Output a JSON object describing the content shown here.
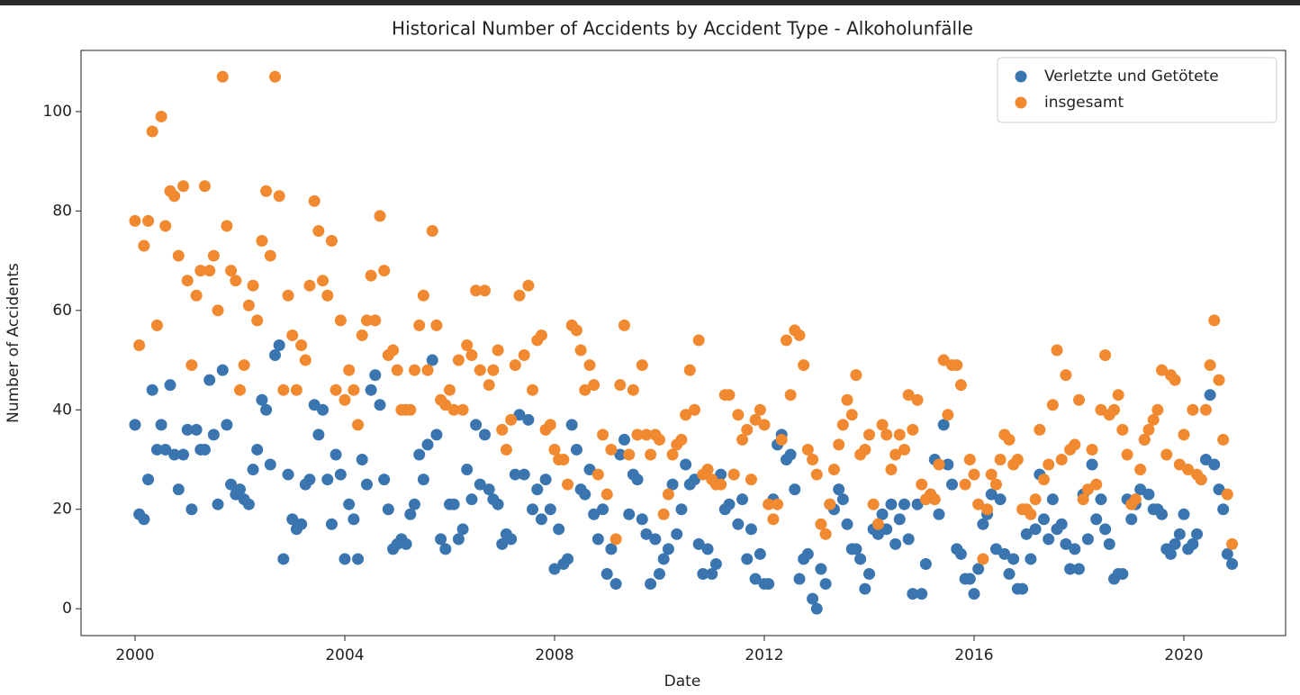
{
  "chart_data": {
    "type": "scatter",
    "title": "Historical Number of Accidents by Accident Type - Alkoholunfälle",
    "xlabel": "Date",
    "ylabel": "Number of Accidents",
    "xlim": [
      1998.97,
      2021.94
    ],
    "xticks": [
      2000,
      2004,
      2008,
      2012,
      2016,
      2020
    ],
    "ylim": [
      -5.4,
      112.3
    ],
    "yticks": [
      0,
      20,
      40,
      60,
      80,
      100
    ],
    "grid": false,
    "legend": "upper right",
    "x": [
      2000,
      2000.08,
      2000.17,
      2000.25,
      2000.33,
      2000.42,
      2000.5,
      2000.58,
      2000.67,
      2000.75,
      2000.83,
      2000.92,
      2001,
      2001.08,
      2001.17,
      2001.25,
      2001.33,
      2001.42,
      2001.5,
      2001.58,
      2001.67,
      2001.75,
      2001.83,
      2001.92,
      2002,
      2002.08,
      2002.17,
      2002.25,
      2002.33,
      2002.42,
      2002.5,
      2002.58,
      2002.67,
      2002.75,
      2002.83,
      2002.92,
      2003,
      2003.08,
      2003.17,
      2003.25,
      2003.33,
      2003.42,
      2003.5,
      2003.58,
      2003.67,
      2003.75,
      2003.83,
      2003.92,
      2004,
      2004.08,
      2004.17,
      2004.25,
      2004.33,
      2004.42,
      2004.5,
      2004.58,
      2004.67,
      2004.75,
      2004.83,
      2004.92,
      2005,
      2005.08,
      2005.17,
      2005.25,
      2005.33,
      2005.42,
      2005.5,
      2005.58,
      2005.67,
      2005.75,
      2005.83,
      2005.92,
      2006,
      2006.08,
      2006.17,
      2006.25,
      2006.33,
      2006.42,
      2006.5,
      2006.58,
      2006.67,
      2006.75,
      2006.83,
      2006.92,
      2007,
      2007.08,
      2007.17,
      2007.25,
      2007.33,
      2007.42,
      2007.5,
      2007.58,
      2007.67,
      2007.75,
      2007.83,
      2007.92,
      2008,
      2008.08,
      2008.17,
      2008.25,
      2008.33,
      2008.42,
      2008.5,
      2008.58,
      2008.67,
      2008.75,
      2008.83,
      2008.92,
      2009,
      2009.08,
      2009.17,
      2009.25,
      2009.33,
      2009.42,
      2009.5,
      2009.58,
      2009.67,
      2009.75,
      2009.83,
      2009.92,
      2010,
      2010.08,
      2010.17,
      2010.25,
      2010.33,
      2010.42,
      2010.5,
      2010.58,
      2010.67,
      2010.75,
      2010.83,
      2010.92,
      2011,
      2011.08,
      2011.17,
      2011.25,
      2011.33,
      2011.42,
      2011.5,
      2011.58,
      2011.67,
      2011.75,
      2011.83,
      2011.92,
      2012,
      2012.08,
      2012.17,
      2012.25,
      2012.33,
      2012.42,
      2012.5,
      2012.58,
      2012.67,
      2012.75,
      2012.83,
      2012.92,
      2013,
      2013.08,
      2013.17,
      2013.25,
      2013.33,
      2013.42,
      2013.5,
      2013.58,
      2013.67,
      2013.75,
      2013.83,
      2013.92,
      2014,
      2014.08,
      2014.17,
      2014.25,
      2014.33,
      2014.42,
      2014.5,
      2014.58,
      2014.67,
      2014.75,
      2014.83,
      2014.92,
      2015,
      2015.08,
      2015.17,
      2015.25,
      2015.33,
      2015.42,
      2015.5,
      2015.58,
      2015.67,
      2015.75,
      2015.83,
      2015.92,
      2016,
      2016.08,
      2016.17,
      2016.25,
      2016.33,
      2016.42,
      2016.5,
      2016.58,
      2016.67,
      2016.75,
      2016.83,
      2016.92,
      2017,
      2017.08,
      2017.17,
      2017.25,
      2017.33,
      2017.42,
      2017.5,
      2017.58,
      2017.67,
      2017.75,
      2017.83,
      2017.92,
      2018,
      2018.08,
      2018.17,
      2018.25,
      2018.33,
      2018.42,
      2018.5,
      2018.58,
      2018.67,
      2018.75,
      2018.83,
      2018.92,
      2019,
      2019.08,
      2019.17,
      2019.25,
      2019.33,
      2019.42,
      2019.5,
      2019.58,
      2019.67,
      2019.75,
      2019.83,
      2019.92,
      2020,
      2020.08,
      2020.17,
      2020.25,
      2020.33,
      2020.42,
      2020.5,
      2020.58,
      2020.67,
      2020.75,
      2020.83,
      2020.92
    ],
    "series": [
      {
        "name": "Verletzte und Getötete",
        "color": "#3a75b0",
        "values": [
          37,
          19,
          18,
          26,
          44,
          32,
          37,
          32,
          45,
          31,
          24,
          31,
          36,
          20,
          36,
          32,
          32,
          46,
          35,
          21,
          48,
          37,
          25,
          23,
          24,
          22,
          21,
          28,
          32,
          42,
          40,
          29,
          51,
          53,
          10,
          27,
          18,
          16,
          17,
          25,
          26,
          41,
          35,
          40,
          26,
          17,
          31,
          27,
          10,
          21,
          18,
          10,
          30,
          25,
          44,
          47,
          41,
          26,
          20,
          12,
          13,
          14,
          13,
          19,
          21,
          31,
          26,
          33,
          50,
          35,
          14,
          12,
          21,
          21,
          14,
          16,
          28,
          22,
          37,
          25,
          35,
          24,
          22,
          21,
          13,
          15,
          14,
          27,
          39,
          27,
          38,
          20,
          24,
          18,
          26,
          20,
          8,
          16,
          9,
          10,
          37,
          32,
          24,
          23,
          28,
          19,
          14,
          20,
          7,
          12,
          5,
          31,
          34,
          19,
          27,
          26,
          18,
          15,
          5,
          14,
          7,
          10,
          12,
          25,
          15,
          20,
          29,
          25,
          26,
          13,
          7,
          12,
          7,
          9,
          27,
          20,
          21,
          27,
          17,
          22,
          10,
          16,
          6,
          11,
          5,
          5,
          22,
          33,
          35,
          30,
          31,
          24,
          6,
          10,
          11,
          2,
          0,
          8,
          5,
          21,
          20,
          24,
          22,
          17,
          12,
          12,
          10,
          4,
          7,
          16,
          15,
          19,
          16,
          21,
          13,
          18,
          21,
          14,
          3,
          21,
          3,
          9,
          23,
          30,
          19,
          37,
          29,
          25,
          12,
          11,
          6,
          6,
          3,
          8,
          17,
          19,
          23,
          12,
          22,
          11,
          7,
          10,
          4,
          4,
          15,
          10,
          16,
          27,
          18,
          14,
          22,
          16,
          17,
          13,
          8,
          12,
          8,
          23,
          14,
          29,
          18,
          22,
          16,
          13,
          6,
          7,
          7,
          22,
          18,
          21,
          24,
          34,
          23,
          20,
          20,
          19,
          12,
          11,
          13,
          15,
          19,
          12,
          13,
          15,
          26,
          30,
          43,
          29,
          24,
          20,
          11,
          9
        ]
      },
      {
        "name": "insgesamt",
        "color": "#f0892f",
        "values": [
          78,
          53,
          73,
          78,
          96,
          57,
          99,
          77,
          84,
          83,
          71,
          85,
          66,
          49,
          63,
          68,
          85,
          68,
          71,
          60,
          107,
          77,
          68,
          66,
          44,
          49,
          61,
          65,
          58,
          74,
          84,
          71,
          107,
          83,
          44,
          63,
          55,
          44,
          53,
          50,
          65,
          82,
          76,
          66,
          63,
          74,
          44,
          58,
          42,
          48,
          44,
          37,
          55,
          58,
          67,
          58,
          79,
          68,
          51,
          52,
          48,
          40,
          40,
          40,
          48,
          57,
          63,
          48,
          76,
          57,
          42,
          41,
          44,
          40,
          50,
          40,
          53,
          51,
          64,
          48,
          64,
          45,
          48,
          52,
          36,
          32,
          38,
          49,
          63,
          51,
          65,
          44,
          54,
          55,
          36,
          37,
          32,
          30,
          30,
          25,
          57,
          56,
          52,
          44,
          49,
          45,
          27,
          35,
          23,
          32,
          14,
          45,
          57,
          31,
          44,
          35,
          49,
          35,
          31,
          35,
          34,
          19,
          23,
          31,
          33,
          34,
          39,
          48,
          40,
          54,
          27,
          28,
          26,
          25,
          25,
          43,
          43,
          27,
          39,
          34,
          36,
          26,
          38,
          40,
          37,
          21,
          18,
          21,
          34,
          54,
          43,
          56,
          55,
          49,
          32,
          30,
          27,
          17,
          15,
          21,
          28,
          33,
          37,
          42,
          39,
          47,
          31,
          32,
          35,
          21,
          17,
          37,
          35,
          28,
          31,
          35,
          32,
          43,
          36,
          42,
          25,
          22,
          23,
          22,
          29,
          50,
          39,
          49,
          49,
          45,
          25,
          30,
          27,
          21,
          10,
          20,
          27,
          25,
          30,
          35,
          34,
          29,
          30,
          20,
          20,
          19,
          22,
          36,
          26,
          29,
          41,
          52,
          30,
          47,
          32,
          33,
          42,
          22,
          24,
          32,
          25,
          40,
          51,
          39,
          40,
          43,
          36,
          31,
          21,
          22,
          28,
          34,
          36,
          38,
          40,
          48,
          31,
          47,
          46,
          29,
          35,
          28,
          40,
          27,
          26,
          40,
          49,
          58,
          46,
          34,
          23,
          13
        ]
      }
    ]
  }
}
